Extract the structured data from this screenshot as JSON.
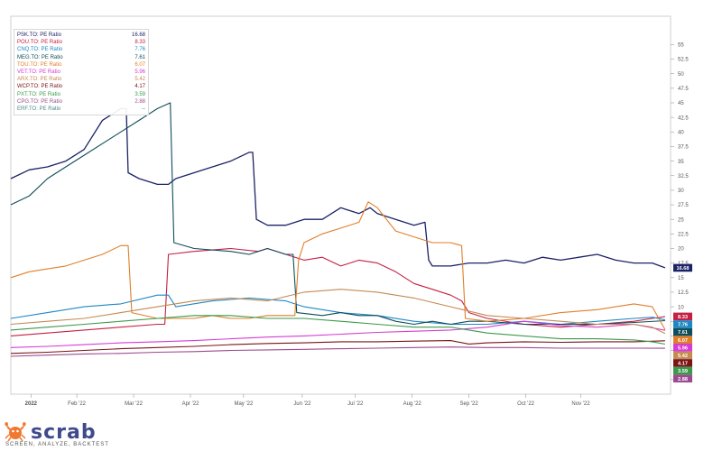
{
  "chart_data": {
    "type": "line",
    "ylim": [
      -5,
      58
    ],
    "y_ticks": [
      -2.5,
      2.5,
      5,
      7.5,
      10,
      12.5,
      15,
      17.5,
      20,
      22.5,
      25,
      27.5,
      30,
      32.5,
      35,
      37.5,
      40,
      42.5,
      45,
      47.5,
      50,
      52.5,
      55
    ],
    "x_ticks": [
      "2022",
      "Feb '22",
      "Mar '22",
      "Apr '22",
      "May '22",
      "Jun '22",
      "Jul '22",
      "Aug '22",
      "Sep '22",
      "Oct '22",
      "Nov '22"
    ],
    "grid": false,
    "legend_position": "top-left",
    "series": [
      {
        "name": "PSK.TO: PE Ratio",
        "last": "16.68",
        "color": "#1b2266",
        "values": [
          [
            0,
            32
          ],
          [
            1,
            33.5
          ],
          [
            2,
            34
          ],
          [
            3,
            35
          ],
          [
            4,
            37
          ],
          [
            5,
            42
          ],
          [
            6,
            44
          ],
          [
            6.3,
            44
          ],
          [
            6.4,
            33
          ],
          [
            7,
            32
          ],
          [
            8,
            31
          ],
          [
            8.6,
            31
          ],
          [
            9,
            32
          ],
          [
            10,
            33
          ],
          [
            11,
            34
          ],
          [
            12,
            35
          ],
          [
            13,
            36.5
          ],
          [
            13.2,
            36.5
          ],
          [
            13.4,
            25
          ],
          [
            14,
            24
          ],
          [
            15,
            24
          ],
          [
            16,
            25
          ],
          [
            17,
            25
          ],
          [
            18,
            27
          ],
          [
            19,
            26
          ],
          [
            19.6,
            27
          ],
          [
            20,
            26
          ],
          [
            21,
            25
          ],
          [
            22,
            24
          ],
          [
            22.6,
            24.5
          ],
          [
            22.8,
            18
          ],
          [
            23,
            17
          ],
          [
            24,
            17
          ],
          [
            25,
            17.5
          ],
          [
            26,
            17.5
          ],
          [
            27,
            18
          ],
          [
            28,
            17.5
          ],
          [
            29,
            18.5
          ],
          [
            30,
            18
          ],
          [
            31,
            18.5
          ],
          [
            32,
            19
          ],
          [
            33,
            18
          ],
          [
            34,
            17.5
          ],
          [
            35,
            17.5
          ],
          [
            35.7,
            16.68
          ]
        ]
      },
      {
        "name": "POU.TO: PE Ratio",
        "last": "8.33",
        "color": "#c42044",
        "values": [
          [
            0,
            5
          ],
          [
            2,
            5.5
          ],
          [
            4,
            6
          ],
          [
            6,
            6.5
          ],
          [
            8,
            7
          ],
          [
            8.4,
            7
          ],
          [
            8.6,
            19
          ],
          [
            10,
            19.5
          ],
          [
            12,
            20
          ],
          [
            13.5,
            19.5
          ],
          [
            14,
            20
          ],
          [
            15,
            19
          ],
          [
            16,
            18
          ],
          [
            17,
            18.5
          ],
          [
            18,
            17
          ],
          [
            19,
            18
          ],
          [
            20,
            17.5
          ],
          [
            21,
            16
          ],
          [
            22,
            14
          ],
          [
            23,
            13
          ],
          [
            24,
            12
          ],
          [
            24.6,
            11
          ],
          [
            25,
            9
          ],
          [
            26,
            8
          ],
          [
            28,
            7
          ],
          [
            30,
            6.5
          ],
          [
            32,
            7
          ],
          [
            34,
            7.5
          ],
          [
            35,
            8
          ],
          [
            35.7,
            8.33
          ]
        ]
      },
      {
        "name": "CNQ.TO: PE Ratio",
        "last": "7.76",
        "color": "#1e88c4",
        "values": [
          [
            0,
            8
          ],
          [
            2,
            9
          ],
          [
            4,
            10
          ],
          [
            6,
            10.5
          ],
          [
            8,
            12
          ],
          [
            8.6,
            12
          ],
          [
            9,
            10
          ],
          [
            11,
            11
          ],
          [
            13,
            11.5
          ],
          [
            15,
            11
          ],
          [
            16,
            10
          ],
          [
            18,
            9
          ],
          [
            20,
            8.5
          ],
          [
            22,
            7.5
          ],
          [
            24,
            7
          ],
          [
            26,
            7
          ],
          [
            28,
            7.5
          ],
          [
            30,
            7
          ],
          [
            32,
            7.5
          ],
          [
            34,
            8
          ],
          [
            35,
            8.2
          ],
          [
            35.7,
            7.76
          ]
        ]
      },
      {
        "name": "MEG.TO: PE Ratio",
        "last": "7.61",
        "color": "#0e4d5a",
        "values": [
          [
            0,
            27.5
          ],
          [
            1,
            29
          ],
          [
            2,
            32
          ],
          [
            3,
            34
          ],
          [
            4,
            36
          ],
          [
            5,
            38
          ],
          [
            6,
            40
          ],
          [
            7,
            42
          ],
          [
            8,
            44
          ],
          [
            8.7,
            45
          ],
          [
            8.9,
            21
          ],
          [
            10,
            20
          ],
          [
            12,
            19.5
          ],
          [
            13,
            19
          ],
          [
            14,
            20
          ],
          [
            15,
            19
          ],
          [
            15.4,
            19
          ],
          [
            15.6,
            9
          ],
          [
            17,
            8.5
          ],
          [
            18,
            9
          ],
          [
            19,
            8.5
          ],
          [
            20,
            8.5
          ],
          [
            21,
            7.5
          ],
          [
            22,
            7
          ],
          [
            23,
            7.5
          ],
          [
            24,
            7
          ],
          [
            25,
            7.5
          ],
          [
            26,
            7.5
          ],
          [
            28,
            7
          ],
          [
            30,
            7
          ],
          [
            32,
            7
          ],
          [
            34,
            7.3
          ],
          [
            35.7,
            7.61
          ]
        ]
      },
      {
        "name": "TOU.TO: PE Ratio",
        "last": "6.07",
        "color": "#e07f2a",
        "values": [
          [
            0,
            15
          ],
          [
            1,
            16
          ],
          [
            2,
            16.5
          ],
          [
            3,
            17
          ],
          [
            4,
            18
          ],
          [
            5,
            19
          ],
          [
            6,
            20.5
          ],
          [
            6.4,
            20.5
          ],
          [
            6.6,
            9
          ],
          [
            8,
            8
          ],
          [
            9,
            8
          ],
          [
            10,
            8
          ],
          [
            11,
            8.5
          ],
          [
            12,
            8
          ],
          [
            13,
            8
          ],
          [
            14,
            8.5
          ],
          [
            15,
            8.5
          ],
          [
            15.5,
            8.5
          ],
          [
            15.7,
            18
          ],
          [
            16,
            21
          ],
          [
            17,
            22.5
          ],
          [
            18,
            23.5
          ],
          [
            19,
            24.5
          ],
          [
            19.5,
            28
          ],
          [
            20,
            27
          ],
          [
            21,
            23
          ],
          [
            22,
            22
          ],
          [
            23,
            21
          ],
          [
            24,
            21
          ],
          [
            24.6,
            20.5
          ],
          [
            24.8,
            8
          ],
          [
            26,
            7.5
          ],
          [
            28,
            8
          ],
          [
            30,
            9
          ],
          [
            32,
            9.5
          ],
          [
            33,
            10
          ],
          [
            34,
            10.5
          ],
          [
            35,
            10
          ],
          [
            35.7,
            6.07
          ]
        ]
      },
      {
        "name": "VET.TO: PE Ratio",
        "last": "5.96",
        "color": "#d63bd4",
        "values": [
          [
            0,
            3
          ],
          [
            2,
            3.2
          ],
          [
            4,
            3.5
          ],
          [
            6,
            3.8
          ],
          [
            8,
            4
          ],
          [
            10,
            4.2
          ],
          [
            12,
            4.5
          ],
          [
            14,
            4.8
          ],
          [
            16,
            5
          ],
          [
            18,
            5.3
          ],
          [
            20,
            5.6
          ],
          [
            22,
            5.8
          ],
          [
            24,
            6
          ],
          [
            26,
            6.5
          ],
          [
            28,
            7.5
          ],
          [
            30,
            6.8
          ],
          [
            32,
            6.5
          ],
          [
            34,
            7
          ],
          [
            35.7,
            5.96
          ]
        ]
      },
      {
        "name": "ARX.TO: PE Ratio",
        "last": "5.42",
        "color": "#c48a52",
        "values": [
          [
            0,
            7
          ],
          [
            2,
            7.5
          ],
          [
            4,
            8
          ],
          [
            6,
            9
          ],
          [
            8,
            10
          ],
          [
            10,
            11
          ],
          [
            12,
            11.5
          ],
          [
            14,
            11
          ],
          [
            16,
            12.5
          ],
          [
            18,
            13
          ],
          [
            20,
            12.5
          ],
          [
            22,
            11.5
          ],
          [
            24,
            10
          ],
          [
            26,
            8.5
          ],
          [
            28,
            8
          ],
          [
            30,
            7.5
          ],
          [
            32,
            7
          ],
          [
            34,
            7
          ],
          [
            35,
            6.5
          ],
          [
            35.7,
            5.42
          ]
        ]
      },
      {
        "name": "WCP.TO: PE Ratio",
        "last": "4.17",
        "color": "#7a1418",
        "values": [
          [
            0,
            2
          ],
          [
            2,
            2.2
          ],
          [
            4,
            2.5
          ],
          [
            6,
            2.8
          ],
          [
            8,
            3
          ],
          [
            10,
            3.2
          ],
          [
            12,
            3.5
          ],
          [
            14,
            3.7
          ],
          [
            16,
            3.8
          ],
          [
            18,
            4
          ],
          [
            20,
            4
          ],
          [
            22,
            4.1
          ],
          [
            24,
            4.2
          ],
          [
            25,
            3.6
          ],
          [
            26,
            3.8
          ],
          [
            28,
            4
          ],
          [
            30,
            3.9
          ],
          [
            32,
            4
          ],
          [
            34,
            4
          ],
          [
            35.7,
            4.17
          ]
        ]
      },
      {
        "name": "PXT.TO: PE Ratio",
        "last": "3.59",
        "color": "#3a9a4a",
        "values": [
          [
            0,
            6
          ],
          [
            2,
            6.5
          ],
          [
            4,
            7
          ],
          [
            6,
            7.5
          ],
          [
            8,
            8
          ],
          [
            10,
            8.5
          ],
          [
            12,
            8.5
          ],
          [
            14,
            8
          ],
          [
            16,
            8
          ],
          [
            18,
            7.5
          ],
          [
            20,
            7
          ],
          [
            22,
            6.5
          ],
          [
            24,
            6.5
          ],
          [
            26,
            5.5
          ],
          [
            28,
            5
          ],
          [
            30,
            4.5
          ],
          [
            32,
            4.5
          ],
          [
            34,
            4.3
          ],
          [
            35,
            4
          ],
          [
            35.7,
            3.59
          ]
        ]
      },
      {
        "name": "CPG.TO: PE Ratio",
        "last": "2.88",
        "color": "#9c4a8f",
        "values": [
          [
            0,
            1.5
          ],
          [
            2,
            1.7
          ],
          [
            4,
            1.9
          ],
          [
            6,
            2
          ],
          [
            8,
            2.2
          ],
          [
            10,
            2.3
          ],
          [
            12,
            2.5
          ],
          [
            14,
            2.6
          ],
          [
            16,
            2.7
          ],
          [
            18,
            2.8
          ],
          [
            20,
            2.9
          ],
          [
            22,
            3
          ],
          [
            24,
            3.1
          ],
          [
            26,
            3
          ],
          [
            28,
            3
          ],
          [
            30,
            2.9
          ],
          [
            32,
            2.9
          ],
          [
            34,
            2.9
          ],
          [
            35.7,
            2.88
          ]
        ]
      },
      {
        "name": "ERF.TO: PE Ratio",
        "last": "--",
        "color": "#4a8a8a",
        "values": []
      }
    ]
  },
  "brand": {
    "name": "scrab",
    "tagline": "SCREEN, ANALYZE, BACKTEST"
  }
}
